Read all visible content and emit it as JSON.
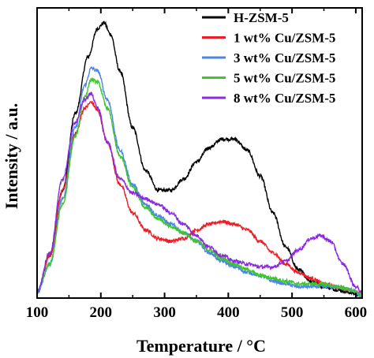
{
  "chart_data": {
    "type": "line",
    "xlabel": "Temperature / °C",
    "ylabel": "Intensity / a.u.",
    "xlim": [
      100,
      610
    ],
    "ylim": [
      0,
      1
    ],
    "x_ticks": [
      100,
      200,
      300,
      400,
      500,
      600
    ],
    "y_ticks_shown": false,
    "grid": false,
    "legend_position": "top-right",
    "series": [
      {
        "name": "H-ZSM-5",
        "color": "#000000",
        "points": [
          [
            100,
            0.02
          ],
          [
            120,
            0.15
          ],
          [
            140,
            0.38
          ],
          [
            160,
            0.65
          ],
          [
            180,
            0.85
          ],
          [
            195,
            0.95
          ],
          [
            205,
            0.97
          ],
          [
            215,
            0.93
          ],
          [
            230,
            0.8
          ],
          [
            250,
            0.6
          ],
          [
            270,
            0.45
          ],
          [
            290,
            0.38
          ],
          [
            310,
            0.38
          ],
          [
            330,
            0.42
          ],
          [
            350,
            0.48
          ],
          [
            370,
            0.53
          ],
          [
            390,
            0.56
          ],
          [
            410,
            0.56
          ],
          [
            430,
            0.52
          ],
          [
            450,
            0.43
          ],
          [
            470,
            0.3
          ],
          [
            490,
            0.18
          ],
          [
            510,
            0.1
          ],
          [
            530,
            0.06
          ],
          [
            550,
            0.04
          ],
          [
            570,
            0.03
          ],
          [
            590,
            0.02
          ],
          [
            610,
            0.01
          ]
        ]
      },
      {
        "name": "1 wt% Cu/ZSM-5",
        "color": "#ee1c24",
        "points": [
          [
            100,
            0.02
          ],
          [
            120,
            0.15
          ],
          [
            140,
            0.38
          ],
          [
            160,
            0.58
          ],
          [
            175,
            0.67
          ],
          [
            185,
            0.69
          ],
          [
            195,
            0.66
          ],
          [
            210,
            0.55
          ],
          [
            230,
            0.4
          ],
          [
            250,
            0.3
          ],
          [
            270,
            0.24
          ],
          [
            290,
            0.21
          ],
          [
            310,
            0.2
          ],
          [
            330,
            0.21
          ],
          [
            350,
            0.24
          ],
          [
            370,
            0.26
          ],
          [
            390,
            0.27
          ],
          [
            410,
            0.26
          ],
          [
            430,
            0.24
          ],
          [
            450,
            0.2
          ],
          [
            470,
            0.16
          ],
          [
            490,
            0.12
          ],
          [
            510,
            0.09
          ],
          [
            530,
            0.07
          ],
          [
            550,
            0.05
          ],
          [
            570,
            0.04
          ],
          [
            590,
            0.03
          ],
          [
            610,
            0.01
          ]
        ]
      },
      {
        "name": "3 wt% Cu/ZSM-5",
        "color": "#4a86e8",
        "points": [
          [
            100,
            0.02
          ],
          [
            120,
            0.12
          ],
          [
            140,
            0.35
          ],
          [
            160,
            0.6
          ],
          [
            175,
            0.75
          ],
          [
            185,
            0.81
          ],
          [
            195,
            0.8
          ],
          [
            210,
            0.7
          ],
          [
            230,
            0.52
          ],
          [
            250,
            0.4
          ],
          [
            270,
            0.33
          ],
          [
            290,
            0.29
          ],
          [
            310,
            0.26
          ],
          [
            330,
            0.23
          ],
          [
            350,
            0.2
          ],
          [
            370,
            0.16
          ],
          [
            390,
            0.13
          ],
          [
            410,
            0.11
          ],
          [
            430,
            0.09
          ],
          [
            450,
            0.08
          ],
          [
            470,
            0.06
          ],
          [
            490,
            0.05
          ],
          [
            510,
            0.04
          ],
          [
            530,
            0.04
          ],
          [
            550,
            0.04
          ],
          [
            570,
            0.04
          ],
          [
            590,
            0.03
          ],
          [
            610,
            0.01
          ]
        ]
      },
      {
        "name": "5 wt% Cu/ZSM-5",
        "color": "#3ec62c",
        "points": [
          [
            100,
            0.02
          ],
          [
            120,
            0.12
          ],
          [
            140,
            0.33
          ],
          [
            160,
            0.57
          ],
          [
            175,
            0.71
          ],
          [
            185,
            0.77
          ],
          [
            195,
            0.76
          ],
          [
            210,
            0.67
          ],
          [
            230,
            0.5
          ],
          [
            250,
            0.39
          ],
          [
            270,
            0.32
          ],
          [
            290,
            0.28
          ],
          [
            310,
            0.25
          ],
          [
            330,
            0.23
          ],
          [
            350,
            0.2
          ],
          [
            370,
            0.17
          ],
          [
            390,
            0.14
          ],
          [
            410,
            0.12
          ],
          [
            430,
            0.1
          ],
          [
            450,
            0.08
          ],
          [
            470,
            0.07
          ],
          [
            490,
            0.06
          ],
          [
            510,
            0.05
          ],
          [
            530,
            0.05
          ],
          [
            550,
            0.05
          ],
          [
            570,
            0.04
          ],
          [
            590,
            0.03
          ],
          [
            610,
            0.01
          ]
        ]
      },
      {
        "name": "8 wt% Cu/ZSM-5",
        "color": "#8a2be2",
        "points": [
          [
            100,
            0.02
          ],
          [
            120,
            0.16
          ],
          [
            140,
            0.42
          ],
          [
            160,
            0.62
          ],
          [
            175,
            0.7
          ],
          [
            185,
            0.72
          ],
          [
            195,
            0.67
          ],
          [
            210,
            0.55
          ],
          [
            230,
            0.42
          ],
          [
            250,
            0.37
          ],
          [
            270,
            0.35
          ],
          [
            290,
            0.33
          ],
          [
            310,
            0.3
          ],
          [
            330,
            0.26
          ],
          [
            350,
            0.22
          ],
          [
            370,
            0.18
          ],
          [
            390,
            0.15
          ],
          [
            410,
            0.13
          ],
          [
            430,
            0.12
          ],
          [
            450,
            0.11
          ],
          [
            470,
            0.11
          ],
          [
            490,
            0.13
          ],
          [
            510,
            0.17
          ],
          [
            530,
            0.21
          ],
          [
            545,
            0.22
          ],
          [
            560,
            0.2
          ],
          [
            580,
            0.12
          ],
          [
            600,
            0.04
          ],
          [
            610,
            0.02
          ]
        ]
      }
    ]
  }
}
